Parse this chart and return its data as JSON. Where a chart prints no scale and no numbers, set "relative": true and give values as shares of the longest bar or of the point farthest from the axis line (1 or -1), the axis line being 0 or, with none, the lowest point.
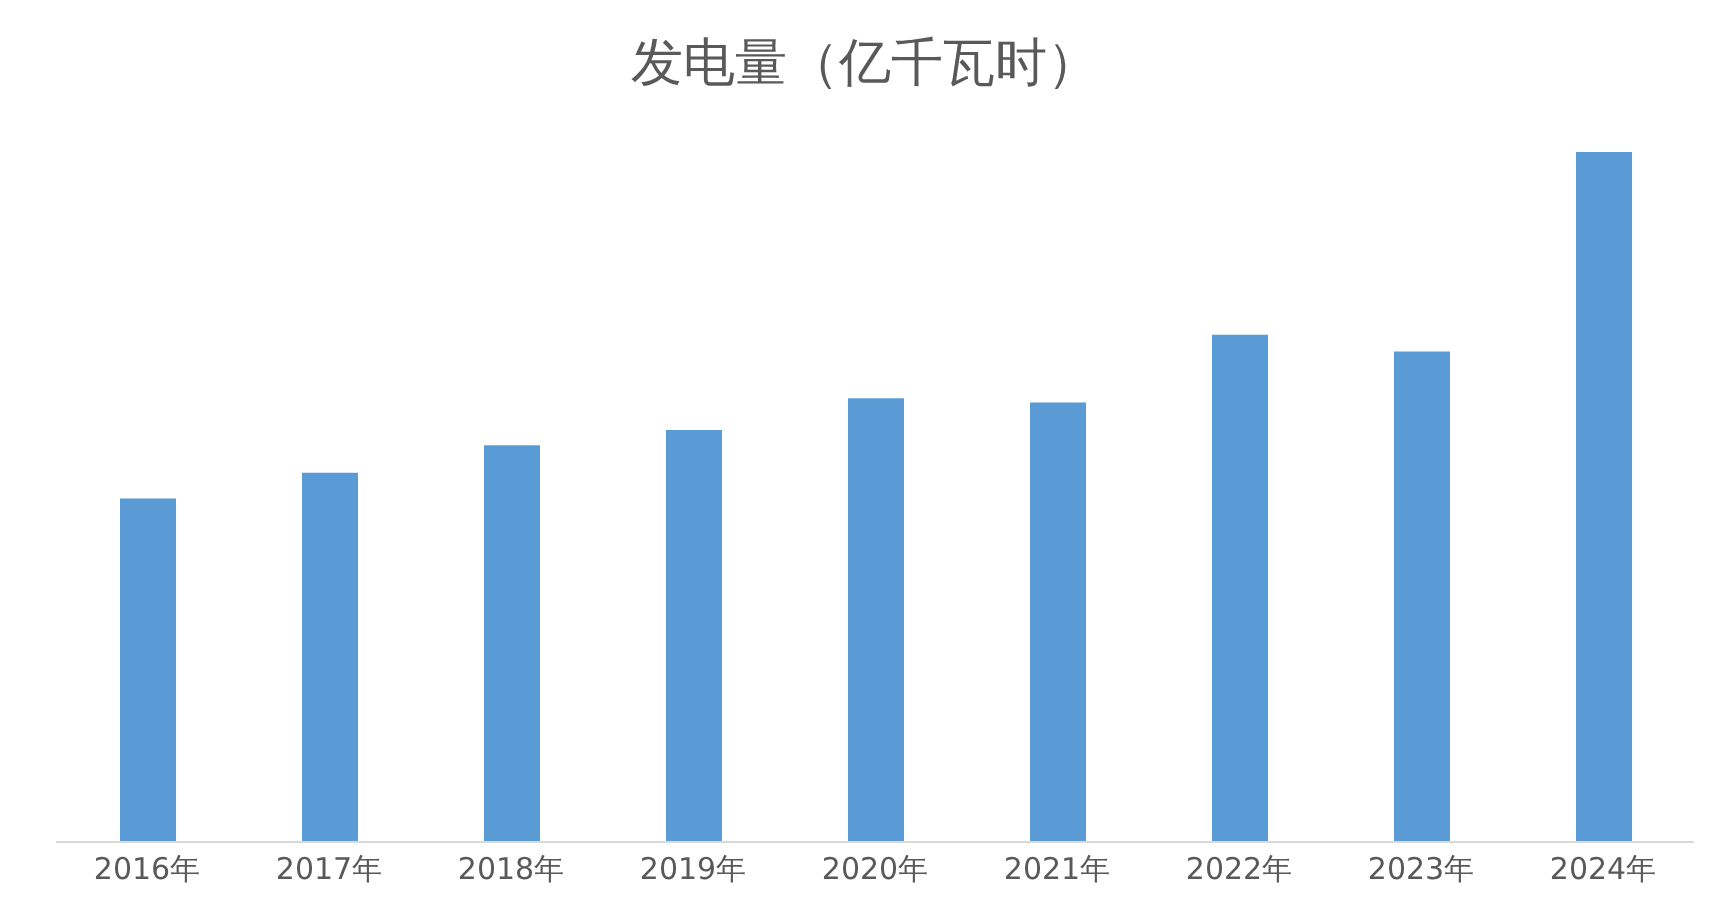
{
  "chart_data": {
    "type": "bar",
    "title": "发电量（亿千瓦时）",
    "relative": true,
    "categories": [
      "2016年",
      "2017年",
      "2018年",
      "2019年",
      "2020年",
      "2021年",
      "2022年",
      "2023年",
      "2024年"
    ],
    "values": [
      0.498,
      0.535,
      0.575,
      0.597,
      0.643,
      0.637,
      0.735,
      0.711,
      1
    ],
    "color": "#5b9bd5"
  }
}
